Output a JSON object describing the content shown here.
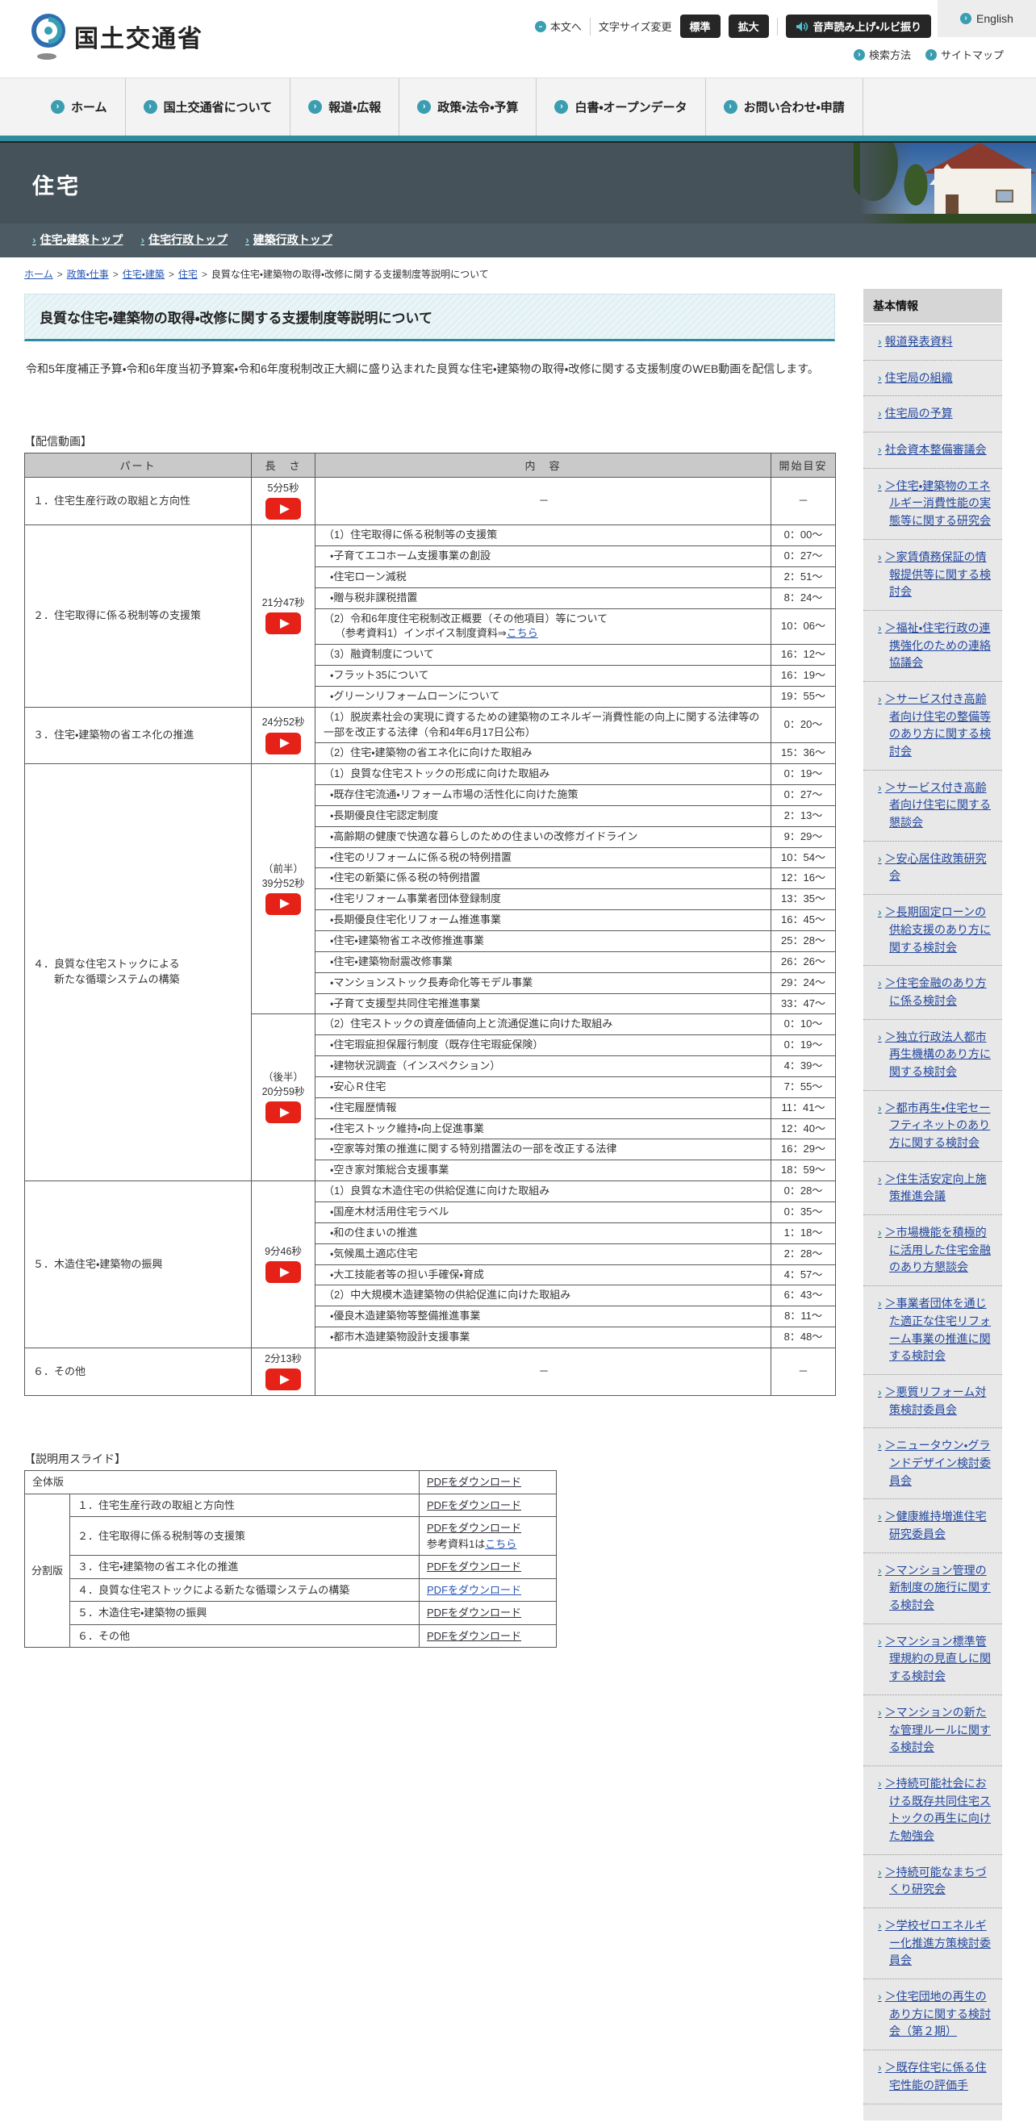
{
  "header": {
    "logo_text": "国土交通省",
    "utility": {
      "to_main": "本文へ",
      "font_size_label": "文字サイズ変更",
      "standard": "標準",
      "large": "拡大",
      "audio": "音声読み上げ・ルビ振り",
      "english": "English",
      "search_how": "検索方法",
      "sitemap": "サイトマップ"
    }
  },
  "nav": {
    "items": [
      "ホーム",
      "国土交通省について",
      "報道・広報",
      "政策・法令・予算",
      "白書・オープンデータ",
      "お問い合わせ・申請"
    ]
  },
  "banner": {
    "title": "住宅",
    "links": [
      "住宅・建築トップ",
      "住宅行政トップ",
      "建築行政トップ"
    ]
  },
  "breadcrumb": {
    "links": [
      "ホーム",
      "政策・仕事",
      "住宅・建築",
      "住宅"
    ],
    "current": "良質な住宅・建築物の取得・改修に関する支援制度等説明について"
  },
  "page": {
    "title": "良質な住宅・建築物の取得・改修に関する支援制度等説明について",
    "intro": "令和5年度補正予算・令和6年度当初予算案・令和6年度税制改正大綱に盛り込まれた良質な住宅・建築物の取得・改修に関する支援制度のWEB動画を配信します。",
    "video_label": "【配信動画】",
    "slides_label": "【説明用スライド】"
  },
  "video_table": {
    "headers": [
      "パート",
      "長　さ",
      "内　容",
      "開始目安"
    ],
    "parts": [
      {
        "name_lines": [
          "１．住宅生産行政の取組と方向性"
        ],
        "segments": [
          {
            "length_lines": [
              "5分5秒"
            ],
            "rows": [
              {
                "text": "－",
                "start": "－",
                "center": true
              }
            ]
          }
        ]
      },
      {
        "name_lines": [
          "２．住宅取得に係る税制等の支援策"
        ],
        "segments": [
          {
            "length_lines": [
              "21分47秒"
            ],
            "rows": [
              {
                "text": "（1）住宅取得に係る税制等の支援策",
                "start": "0：00～"
              },
              {
                "text": "・子育てエコホーム支援事業の創設",
                "start": "0：27～"
              },
              {
                "text": "・住宅ローン減税",
                "start": "2：51～"
              },
              {
                "text": "・贈与税非課税措置",
                "start": "8：24～"
              },
              {
                "text": "（2）令和6年度住宅税制改正概要（その他項目）等について",
                "line2_pre": "（参考資料1）インボイス制度資料⇒",
                "line2_link": "こちら",
                "start": "10：06～"
              },
              {
                "text": "（3）融資制度について",
                "start": "16：12～"
              },
              {
                "text": "・フラット35について",
                "start": "16：19～"
              },
              {
                "text": "・グリーンリフォームローンについて",
                "start": "19：55～"
              }
            ]
          }
        ]
      },
      {
        "name_lines": [
          "３．住宅・建築物の省エネ化の推進"
        ],
        "segments": [
          {
            "length_lines": [
              "24分52秒"
            ],
            "rows": [
              {
                "text": "（1）脱炭素社会の実現に資するための建築物のエネルギー消費性能の向上に関する法律等の一部を改正する法律（令和4年6月17日公布）",
                "start": "0：20～"
              },
              {
                "text": "（2）住宅・建築物の省エネ化に向けた取組み",
                "start": "15：36～"
              }
            ]
          }
        ]
      },
      {
        "name_lines": [
          "４．良質な住宅ストックによる",
          "　　新たな循環システムの構築"
        ],
        "segments": [
          {
            "length_lines": [
              "（前半）",
              "39分52秒"
            ],
            "rows": [
              {
                "text": "（1）良質な住宅ストックの形成に向けた取組み",
                "start": "0：19～"
              },
              {
                "text": "・既存住宅流通・リフォーム市場の活性化に向けた施策",
                "start": "0：27～"
              },
              {
                "text": "・長期優良住宅認定制度",
                "start": "2：13～"
              },
              {
                "text": "・高齢期の健康で快適な暮らしのための住まいの改修ガイドライン",
                "start": "9：29～"
              },
              {
                "text": "・住宅のリフォームに係る税の特例措置",
                "start": "10：54～"
              },
              {
                "text": "・住宅の新築に係る税の特例措置",
                "start": "12：16～"
              },
              {
                "text": "・住宅リフォーム事業者団体登録制度",
                "start": "13：35～"
              },
              {
                "text": "・長期優良住宅化リフォーム推進事業",
                "start": "16：45～"
              },
              {
                "text": "・住宅・建築物省エネ改修推進事業",
                "start": "25：28～"
              },
              {
                "text": "・住宅・建築物耐震改修事業",
                "start": "26：26～"
              },
              {
                "text": "・マンションストック長寿命化等モデル事業",
                "start": "29：24～"
              },
              {
                "text": "・子育て支援型共同住宅推進事業",
                "start": "33：47～"
              }
            ]
          },
          {
            "length_lines": [
              "（後半）",
              "20分59秒"
            ],
            "rows": [
              {
                "text": "（2）住宅ストックの資産価値向上と流通促進に向けた取組み",
                "start": "0：10～"
              },
              {
                "text": "・住宅瑕疵担保履行制度（既存住宅瑕疵保険）",
                "start": "0：19～"
              },
              {
                "text": "・建物状況調査（インスペクション）",
                "start": "4：39～"
              },
              {
                "text": "・安心Ｒ住宅",
                "start": "7：55～"
              },
              {
                "text": "・住宅履歴情報",
                "start": "11：41～"
              },
              {
                "text": "・住宅ストック維持・向上促進事業",
                "start": "12：40～"
              },
              {
                "text": "・空家等対策の推進に関する特別措置法の一部を改正する法律",
                "start": "16：29～"
              },
              {
                "text": "・空き家対策総合支援事業",
                "start": "18：59～"
              }
            ]
          }
        ]
      },
      {
        "name_lines": [
          "５．木造住宅・建築物の振興"
        ],
        "segments": [
          {
            "length_lines": [
              "9分46秒"
            ],
            "rows": [
              {
                "text": "（1）良質な木造住宅の供給促進に向けた取組み",
                "start": "0：28～"
              },
              {
                "text": "・国産木材活用住宅ラベル",
                "start": "0：35～"
              },
              {
                "text": "・和の住まいの推進",
                "start": "1：18～"
              },
              {
                "text": "・気候風土適応住宅",
                "start": "2：28～"
              },
              {
                "text": "・大工技能者等の担い手確保・育成",
                "start": "4：57～"
              },
              {
                "text": "（2）中大規模木造建築物の供給促進に向けた取組み",
                "start": "6：43～"
              },
              {
                "text": "・優良木造建築物等整備推進事業",
                "start": "8：11～"
              },
              {
                "text": "・都市木造建築物設計支援事業",
                "start": "8：48～"
              }
            ]
          }
        ]
      },
      {
        "name_lines": [
          "６．その他"
        ],
        "segments": [
          {
            "length_lines": [
              "2分13秒"
            ],
            "rows": [
              {
                "text": "－",
                "start": "－",
                "center": true
              }
            ]
          }
        ]
      }
    ]
  },
  "slides_table": {
    "full_label": "全体版",
    "split_label": "分割版",
    "pdf_label": "PDFをダウンロード",
    "extra_pre": "参考資料1は",
    "extra_link": "こちら",
    "rows": [
      {
        "label": "１．住宅生産行政の取組と方向性",
        "link_style": "dark"
      },
      {
        "label": "２．住宅取得に係る税制等の支援策",
        "link_style": "dark",
        "has_extra": true
      },
      {
        "label": "３．住宅・建築物の省エネ化の推進",
        "link_style": "dark"
      },
      {
        "label": "４．良質な住宅ストックによる新たな循環システムの構築",
        "link_style": "blue"
      },
      {
        "label": "５．木造住宅・建築物の振興",
        "link_style": "dark"
      },
      {
        "label": "６．その他",
        "link_style": "dark"
      }
    ]
  },
  "sidebar": {
    "title": "基本情報",
    "items": [
      "報道発表資料",
      "住宅局の組織",
      "住宅局の予算",
      "社会資本整備審議会",
      "＞住宅・建築物のエネルギー消費性能の実態等に関する研究会",
      "＞家賃債務保証の情報提供等に関する検討会",
      "＞福祉・住宅行政の連携強化のための連絡協議会",
      "＞サービス付き高齢者向け住宅の整備等のあり方に関する検討会",
      "＞サービス付き高齢者向け住宅に関する懇談会",
      "＞安心居住政策研究会",
      "＞長期固定ローンの供給支援のあり方に関する検討会",
      "＞住宅金融のあり方に係る検討会",
      "＞独立行政法人都市再生機構のあり方に関する検討会",
      "＞都市再生・住宅セーフティネットのあり方に関する検討会",
      "＞住生活安定向上施策推進会議",
      "＞市場機能を積極的に活用した住宅金融のあり方懇談会",
      "＞事業者団体を通じた適正な住宅リフォーム事業の推進に関する検討会",
      "＞悪質リフォーム対策検討委員会",
      "＞ニュータウン・グランドデザイン検討委員会",
      "＞健康維持増進住宅研究委員会",
      "＞マンション管理の新制度の施行に関する検討会",
      "＞マンション標準管理規約の見直しに関する検討会",
      "＞マンションの新たな管理ルールに関する検討会",
      "＞持続可能社会における既存共同住宅ストックの再生に向けた勉強会",
      "＞持続可能なまちづくり研究会",
      "＞学校ゼロエネルギー化推進方策検討委員会",
      "＞住宅団地の再生のあり方に関する検討会（第２期）",
      "＞既存住宅に係る住宅性能の評価手"
    ]
  }
}
